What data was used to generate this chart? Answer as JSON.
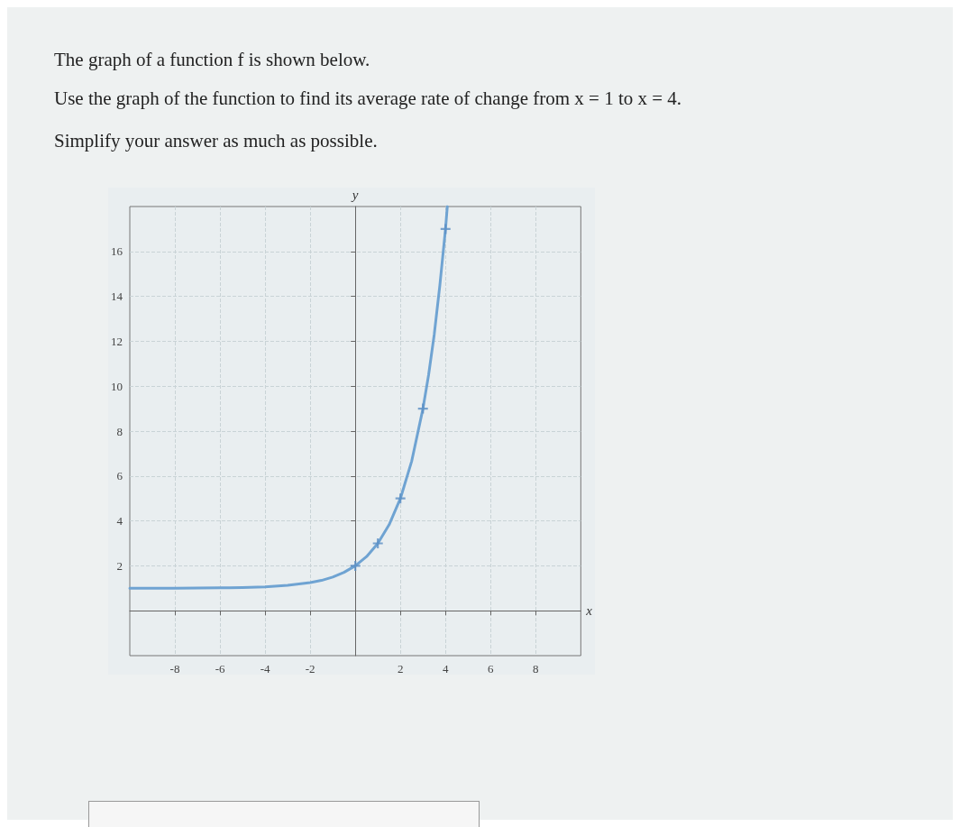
{
  "chart_data": {
    "type": "line",
    "title": "The graph of a function f is shown below.",
    "annotations": [
      "Use the graph of the function to find its average rate of change from x = 1 to x = 4.",
      "Simplify your answer as much as possible."
    ],
    "xlabel": "x",
    "ylabel": "y",
    "xlim": [
      -10,
      10
    ],
    "ylim": [
      -2,
      18
    ],
    "xticks": [
      -8,
      -6,
      -4,
      -2,
      2,
      4,
      6,
      8
    ],
    "yticks": [
      2,
      4,
      6,
      8,
      10,
      12,
      14,
      16
    ],
    "grid": true,
    "series": [
      {
        "color": "#6fa3d2",
        "x": [
          -10,
          -8,
          -6,
          -5,
          -4,
          -3,
          -2,
          -1.5,
          -1,
          -0.5,
          0,
          0.5,
          1,
          1.5,
          2,
          2.5,
          3,
          3.25,
          3.5,
          3.75,
          4,
          4.08
        ],
        "values": [
          1,
          1,
          1.02,
          1.03,
          1.06,
          1.13,
          1.25,
          1.35,
          1.5,
          1.71,
          2,
          2.41,
          3,
          3.83,
          5,
          6.66,
          9,
          10.5,
          12.3,
          14.5,
          17,
          18
        ],
        "marker": "none",
        "line_style": "solid"
      },
      {
        "type": "scatter",
        "color": "#5b8fc4",
        "x": [
          0,
          1,
          2,
          3,
          4
        ],
        "values": [
          2,
          3,
          5,
          9,
          17
        ],
        "marker": "cross"
      }
    ]
  }
}
